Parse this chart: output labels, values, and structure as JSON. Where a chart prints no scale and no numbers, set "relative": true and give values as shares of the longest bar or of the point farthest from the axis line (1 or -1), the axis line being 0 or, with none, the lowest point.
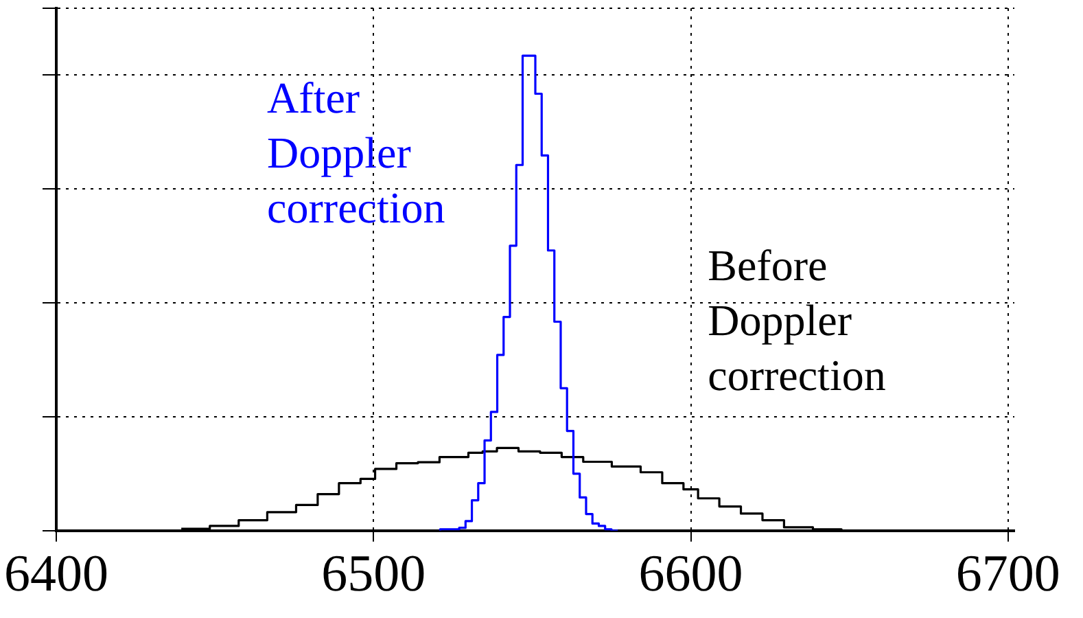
{
  "chart_data": {
    "type": "step",
    "relative": true,
    "grid": true,
    "line_style": "solid",
    "marker": "none",
    "legend": false,
    "xlim": [
      6400,
      6702
    ],
    "xticks": [
      6400,
      6500,
      6600,
      6700
    ],
    "series": [
      {
        "name": "After Doppler correction",
        "color": "#0000ff",
        "x": [
          6521,
          6523,
          6525,
          6527,
          6529,
          6531,
          6533,
          6535,
          6537,
          6539,
          6541,
          6543,
          6545,
          6547,
          6549,
          6551,
          6553,
          6555,
          6557,
          6559,
          6561,
          6563,
          6565,
          6567,
          6569,
          6571,
          6573,
          6575,
          6577
        ],
        "values": [
          0,
          0.003,
          0.003,
          0.003,
          0.006,
          0.02,
          0.064,
          0.1,
          0.19,
          0.25,
          0.37,
          0.45,
          0.6,
          0.77,
          1,
          1,
          0.92,
          0.79,
          0.59,
          0.44,
          0.3,
          0.21,
          0.12,
          0.07,
          0.035,
          0.015,
          0.01,
          0.003,
          0
        ]
      },
      {
        "name": "Before Doppler correction",
        "color": "#000000",
        "x": [
          6439.4,
          6448.4,
          6457.5,
          6466.5,
          6475.6,
          6482.4,
          6489.1,
          6495.9,
          6500.5,
          6507.2,
          6514,
          6520.8,
          6529.9,
          6534.4,
          6538.9,
          6545.7,
          6552.5,
          6559.3,
          6566.1,
          6575.1,
          6584.2,
          6591,
          6597.7,
          6602.3,
          6609,
          6615.8,
          6622.6,
          6629.4,
          6638.5,
          6647.5,
          6656.6
        ],
        "values": [
          0.004,
          0.004,
          0.01,
          0.022,
          0.039,
          0.054,
          0.077,
          0.1,
          0.109,
          0.13,
          0.142,
          0.144,
          0.155,
          0.164,
          0.167,
          0.174,
          0.167,
          0.164,
          0.155,
          0.145,
          0.135,
          0.123,
          0.1,
          0.087,
          0.068,
          0.051,
          0.036,
          0.022,
          0.007,
          0.003,
          0
        ]
      }
    ]
  }
}
